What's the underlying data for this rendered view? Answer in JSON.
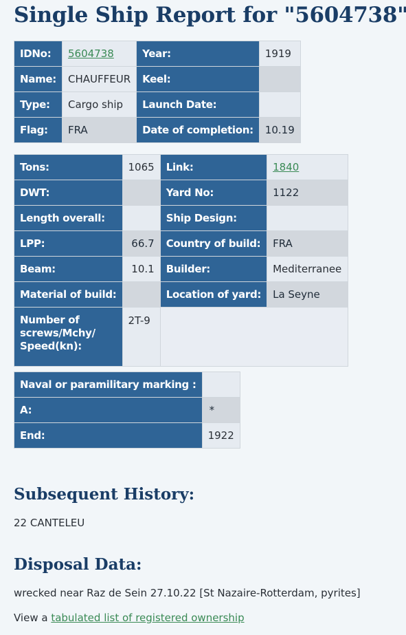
{
  "page": {
    "title": "Single Ship Report for \"5604738\""
  },
  "table1": {
    "idno_label": "IDNo:",
    "idno_value": "5604738",
    "year_label": "Year:",
    "year_value": "1919",
    "name_label": "Name:",
    "name_value": "CHAUFFEUR",
    "keel_label": "Keel:",
    "type_label": "Type:",
    "type_value": "Cargo ship",
    "launch_label": "Launch Date:",
    "flag_label": "Flag:",
    "flag_value": "FRA",
    "completion_label": "Date of completion:",
    "completion_value": "10.19"
  },
  "table2": {
    "tons_label": "Tons:",
    "tons_value": "1065",
    "link_label": "Link:",
    "link_value": "1840",
    "dwt_label": "DWT:",
    "yardno_label": "Yard No:",
    "yardno_value": "1122",
    "length_label": "Length overall:",
    "design_label": "Ship Design:",
    "lpp_label": "LPP:",
    "lpp_value": "66.7",
    "country_label": "Country of build:",
    "country_value": "FRA",
    "beam_label": "Beam:",
    "beam_value": "10.1",
    "builder_label": "Builder:",
    "builder_value": "Mediterranee",
    "material_label": "Material of build:",
    "location_label": "Location of yard:",
    "location_value": "La Seyne",
    "screws_label_1": "Number of",
    "screws_label_2": "screws/Mchy/",
    "screws_label_3": "Speed(kn):",
    "screws_value": "2T-9"
  },
  "table3": {
    "naval_label": "Naval or paramilitary marking :",
    "a_label": "A:",
    "a_value": "*",
    "end_label": "End:",
    "end_value": "1922"
  },
  "history": {
    "heading": "Subsequent History:",
    "text": "22 CANTELEU"
  },
  "disposal": {
    "heading": "Disposal Data:",
    "text": "wrecked near Raz de Sein 27.10.22 [St Nazaire-Rotterdam, pyrites]",
    "view_prefix": "View a ",
    "view_link": "tabulated list of registered ownership"
  }
}
